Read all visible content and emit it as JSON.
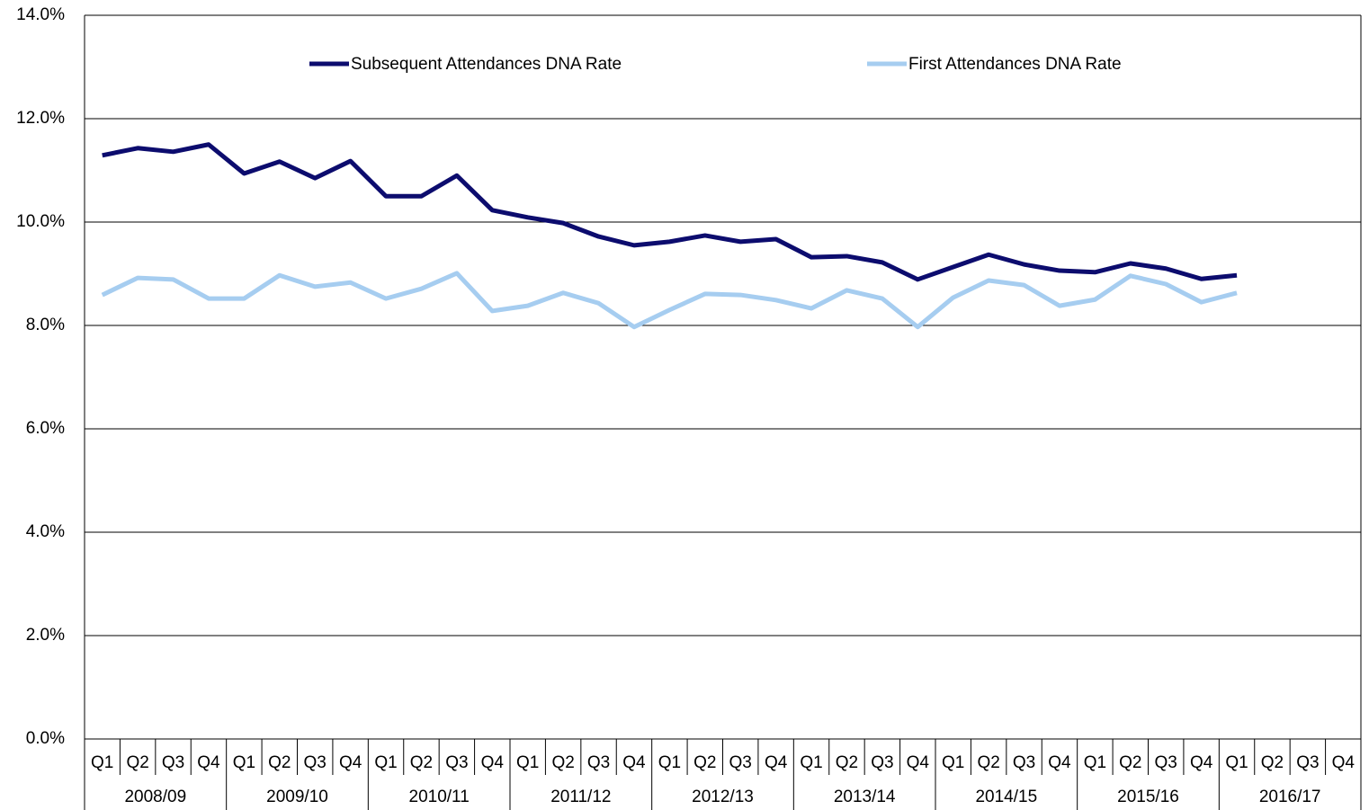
{
  "chart_data": {
    "type": "line",
    "categories": [
      "Q1",
      "Q2",
      "Q3",
      "Q4",
      "Q1",
      "Q2",
      "Q3",
      "Q4",
      "Q1",
      "Q2",
      "Q3",
      "Q4",
      "Q1",
      "Q2",
      "Q3",
      "Q4",
      "Q1",
      "Q2",
      "Q3",
      "Q4",
      "Q1",
      "Q2",
      "Q3",
      "Q4",
      "Q1",
      "Q2",
      "Q3",
      "Q4",
      "Q1",
      "Q2",
      "Q3",
      "Q4",
      "Q1",
      "Q2",
      "Q3",
      "Q4"
    ],
    "category_groups": [
      "2008/09",
      "2009/10",
      "2010/11",
      "2011/12",
      "2012/13",
      "2013/14",
      "2014/15",
      "2015/16",
      "2016/17"
    ],
    "series": [
      {
        "name": "Subsequent Attendances DNA Rate",
        "color": "#0c0c6e",
        "values": [
          11.29,
          11.43,
          11.36,
          11.5,
          10.94,
          11.17,
          10.85,
          11.18,
          10.5,
          10.5,
          10.9,
          10.23,
          10.09,
          9.98,
          9.72,
          9.55,
          9.62,
          9.74,
          9.62,
          9.67,
          9.32,
          9.34,
          9.22,
          8.89,
          9.13,
          9.37,
          9.18,
          9.06,
          9.03,
          9.2,
          9.1,
          8.9,
          8.97,
          null,
          null,
          null
        ]
      },
      {
        "name": "First Attendances DNA Rate",
        "color": "#a6cdf0",
        "values": [
          8.59,
          8.92,
          8.89,
          8.52,
          8.52,
          8.97,
          8.75,
          8.83,
          8.52,
          8.71,
          9.01,
          8.28,
          8.38,
          8.63,
          8.43,
          7.97,
          8.3,
          8.61,
          8.59,
          8.49,
          8.33,
          8.68,
          8.52,
          7.97,
          8.54,
          8.87,
          8.78,
          8.38,
          8.5,
          8.96,
          8.8,
          8.45,
          8.63,
          null,
          null,
          null
        ]
      }
    ],
    "ylim": [
      0,
      14
    ],
    "yticks": [
      {
        "value": 0,
        "label": "0.0%"
      },
      {
        "value": 2,
        "label": "2.0%"
      },
      {
        "value": 4,
        "label": "4.0%"
      },
      {
        "value": 6,
        "label": "6.0%"
      },
      {
        "value": 8,
        "label": "8.0%"
      },
      {
        "value": 10,
        "label": "10.0%"
      },
      {
        "value": 12,
        "label": "12.0%"
      },
      {
        "value": 14,
        "label": "14.0%"
      }
    ],
    "grid": true,
    "legend": "top"
  }
}
